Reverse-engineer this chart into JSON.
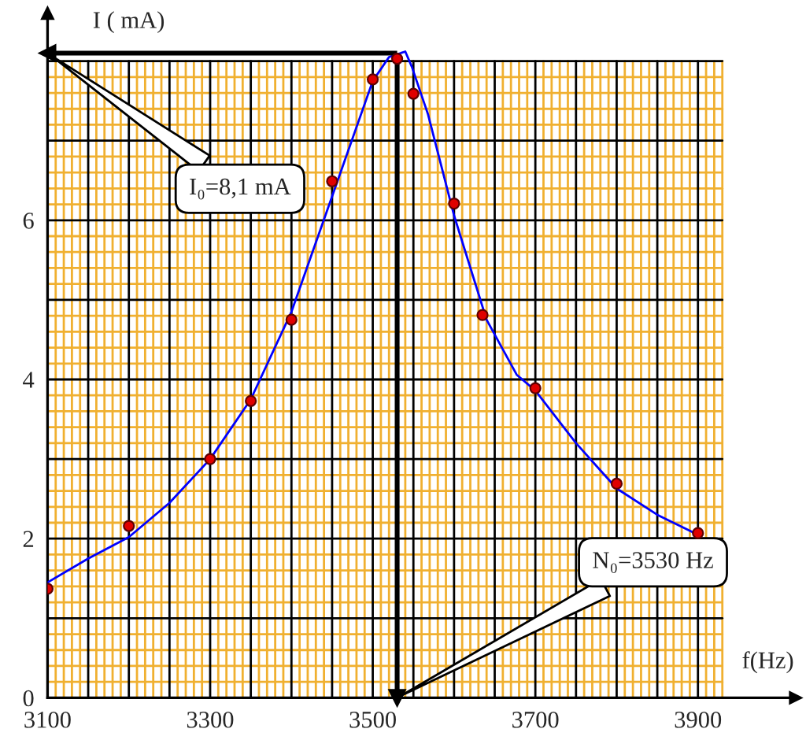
{
  "chart_data": {
    "type": "scatter",
    "xlabel": "f(Hz)",
    "ylabel": "I ( mA)",
    "series": [
      {
        "color": "#e00000",
        "marker": "circle",
        "x": [
          3100,
          3200,
          3300,
          3350,
          3400,
          3450,
          3500,
          3530,
          3550,
          3600,
          3635,
          3700,
          3800,
          3900
        ],
        "values": [
          1.37,
          2.16,
          3.0,
          3.73,
          4.75,
          6.49,
          7.77,
          8.03,
          7.59,
          6.21,
          4.81,
          3.89,
          2.69,
          2.07
        ]
      },
      {
        "type": "line",
        "color": "#0000ff",
        "marker": "none",
        "x": [
          3100,
          3150,
          3200,
          3250,
          3300,
          3350,
          3400,
          3450,
          3500,
          3520,
          3540,
          3548,
          3568,
          3600,
          3640,
          3677,
          3700,
          3750,
          3800,
          3850,
          3900
        ],
        "values": [
          1.45,
          1.75,
          2.02,
          2.45,
          3.0,
          3.75,
          4.85,
          6.3,
          7.75,
          8.05,
          8.12,
          7.93,
          7.33,
          6.06,
          4.75,
          4.06,
          3.86,
          3.2,
          2.63,
          2.3,
          2.05
        ]
      }
    ],
    "xlim": [
      3100,
      4020
    ],
    "ylim": [
      0,
      8.6
    ],
    "xticks": [
      3100,
      {
        "value": 3110,
        "label": null
      },
      {
        "value": 3120,
        "label": null
      },
      {
        "value": 3130,
        "label": null
      },
      {
        "value": 3140,
        "label": null
      },
      {
        "value": 3150,
        "label": null
      },
      {
        "value": 3160,
        "label": null
      },
      {
        "value": 3170,
        "label": null
      },
      {
        "value": 3180,
        "label": null
      },
      {
        "value": 3190,
        "label": null
      },
      {
        "value": 3200,
        "label": null
      },
      {
        "value": 3210,
        "label": null
      },
      {
        "value": 3220,
        "label": null
      },
      {
        "value": 3230,
        "label": null
      },
      {
        "value": 3240,
        "label": null
      },
      {
        "value": 3250,
        "label": null
      },
      {
        "value": 3260,
        "label": null
      },
      {
        "value": 3270,
        "label": null
      },
      {
        "value": 3280,
        "label": null
      },
      {
        "value": 3290,
        "label": null
      },
      3300,
      {
        "value": 3310,
        "label": null
      },
      {
        "value": 3320,
        "label": null
      },
      {
        "value": 3330,
        "label": null
      },
      {
        "value": 3340,
        "label": null
      },
      {
        "value": 3350,
        "label": null
      },
      {
        "value": 3360,
        "label": null
      },
      {
        "value": 3370,
        "label": null
      },
      {
        "value": 3380,
        "label": null
      },
      {
        "value": 3390,
        "label": null
      },
      {
        "value": 3400,
        "label": null
      },
      {
        "value": 3410,
        "label": null
      },
      {
        "value": 3420,
        "label": null
      },
      {
        "value": 3430,
        "label": null
      },
      {
        "value": 3440,
        "label": null
      },
      {
        "value": 3450,
        "label": null
      },
      {
        "value": 3460,
        "label": null
      },
      {
        "value": 3470,
        "label": null
      },
      {
        "value": 3480,
        "label": null
      },
      {
        "value": 3490,
        "label": null
      },
      3500,
      {
        "value": 3510,
        "label": null
      },
      {
        "value": 3520,
        "label": null
      },
      {
        "value": 3530,
        "label": null
      },
      {
        "value": 3540,
        "label": null
      },
      {
        "value": 3550,
        "label": null
      },
      {
        "value": 3560,
        "label": null
      },
      {
        "value": 3570,
        "label": null
      },
      {
        "value": 3580,
        "label": null
      },
      {
        "value": 3590,
        "label": null
      },
      {
        "value": 3600,
        "label": null
      },
      {
        "value": 3610,
        "label": null
      },
      {
        "value": 3620,
        "label": null
      },
      {
        "value": 3630,
        "label": null
      },
      {
        "value": 3640,
        "label": null
      },
      {
        "value": 3650,
        "label": null
      },
      {
        "value": 3660,
        "label": null
      },
      {
        "value": 3670,
        "label": null
      },
      {
        "value": 3680,
        "label": null
      },
      {
        "value": 3690,
        "label": null
      },
      3700,
      {
        "value": 3710,
        "label": null
      },
      {
        "value": 3720,
        "label": null
      },
      {
        "value": 3730,
        "label": null
      },
      {
        "value": 3740,
        "label": null
      },
      {
        "value": 3750,
        "label": null
      },
      {
        "value": 3760,
        "label": null
      },
      {
        "value": 3770,
        "label": null
      },
      {
        "value": 3780,
        "label": null
      },
      {
        "value": 3790,
        "label": null
      },
      {
        "value": 3800,
        "label": null
      },
      {
        "value": 3810,
        "label": null
      },
      {
        "value": 3820,
        "label": null
      },
      {
        "value": 3830,
        "label": null
      },
      {
        "value": 3840,
        "label": null
      },
      {
        "value": 3850,
        "label": null
      },
      {
        "value": 3860,
        "label": null
      },
      {
        "value": 3870,
        "label": null
      },
      {
        "value": 3880,
        "label": null
      },
      {
        "value": 3890,
        "label": null
      },
      3900,
      {
        "value": 3910,
        "label": null
      },
      {
        "value": 3920,
        "label": null
      },
      {
        "value": 3930,
        "label": null
      }
    ],
    "yticks": [
      0,
      {
        "value": 0.2,
        "label": null
      },
      {
        "value": 0.4,
        "label": null
      },
      {
        "value": 0.6,
        "label": null
      },
      {
        "value": 0.8,
        "label": null
      },
      {
        "value": 1,
        "label": null
      },
      {
        "value": 1.2,
        "label": null
      },
      {
        "value": 1.4,
        "label": null
      },
      {
        "value": 1.6,
        "label": null
      },
      {
        "value": 1.8,
        "label": null
      },
      2,
      {
        "value": 2.2,
        "label": null
      },
      {
        "value": 2.4,
        "label": null
      },
      {
        "value": 2.6,
        "label": null
      },
      {
        "value": 2.8,
        "label": null
      },
      {
        "value": 3,
        "label": null
      },
      {
        "value": 3.2,
        "label": null
      },
      {
        "value": 3.4,
        "label": null
      },
      {
        "value": 3.6,
        "label": null
      },
      {
        "value": 3.8,
        "label": null
      },
      4,
      {
        "value": 4.2,
        "label": null
      },
      {
        "value": 4.4,
        "label": null
      },
      {
        "value": 4.6,
        "label": null
      },
      {
        "value": 4.8,
        "label": null
      },
      {
        "value": 5,
        "label": null
      },
      {
        "value": 5.2,
        "label": null
      },
      {
        "value": 5.4,
        "label": null
      },
      {
        "value": 5.6,
        "label": null
      },
      {
        "value": 5.8,
        "label": null
      },
      6,
      {
        "value": 6.2,
        "label": null
      },
      {
        "value": 6.4,
        "label": null
      },
      {
        "value": 6.6,
        "label": null
      },
      {
        "value": 6.8,
        "label": null
      },
      {
        "value": 7,
        "label": null
      },
      {
        "value": 7.2,
        "label": null
      },
      {
        "value": 7.4,
        "label": null
      },
      {
        "value": 7.6,
        "label": null
      },
      {
        "value": 7.8,
        "label": null
      },
      {
        "value": 8,
        "label": null
      }
    ],
    "grid": true,
    "ref_lines": [
      {
        "axis": "y",
        "value": 8.1,
        "color": "#000000"
      },
      {
        "axis": "x",
        "value": 3530,
        "color": "#000000"
      }
    ],
    "annotations": [
      "I₀=8,1 mA",
      "N₀=3530 Hz"
    ]
  }
}
